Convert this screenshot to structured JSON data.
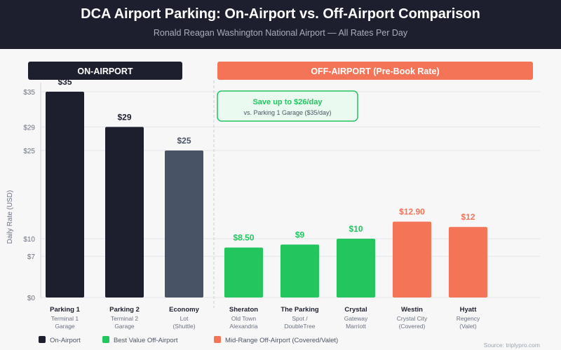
{
  "header": {
    "title": "DCA Airport Parking: On-Airport vs. Off-Airport Comparison",
    "subtitle": "Ronald Reagan Washington National Airport — All Rates Per Day"
  },
  "chart_data": {
    "type": "bar",
    "title": "DCA Airport Parking: On-Airport vs. Off-Airport Comparison",
    "subtitle": "Ronald Reagan Washington National Airport — All Rates Per Day",
    "ylabel": "Daily Rate (USD)",
    "xlabel": "",
    "ylim": [
      0,
      35
    ],
    "yticks": [
      0,
      7,
      10,
      25,
      29,
      35
    ],
    "ytick_labels": [
      "$0",
      "$7",
      "$10",
      "$25",
      "$29",
      "$35"
    ],
    "groups": [
      {
        "label": "ON-AIRPORT",
        "color": "#1d1f2e"
      },
      {
        "label": "OFF-AIRPORT (Pre-Book Rate)",
        "color": "#f47458"
      }
    ],
    "bars": [
      {
        "name": "Parking 1",
        "sub1": "Terminal 1",
        "sub2": "Garage",
        "value": 35,
        "label": "$35",
        "color": "#1d1f2e",
        "labelColor": "#1d1f2e",
        "category": "On-Airport"
      },
      {
        "name": "Parking 2",
        "sub1": "Terminal 2",
        "sub2": "Garage",
        "value": 29,
        "label": "$29",
        "color": "#1d1f2e",
        "labelColor": "#1d1f2e",
        "category": "On-Airport"
      },
      {
        "name": "Economy",
        "sub1": "Lot",
        "sub2": "(Shuttle)",
        "value": 25,
        "label": "$25",
        "color": "#485466",
        "labelColor": "#485466",
        "category": "On-Airport"
      },
      {
        "name": "Sheraton",
        "sub1": "Old Town",
        "sub2": "Alexandria",
        "value": 8.5,
        "label": "$8.50",
        "color": "#22c55e",
        "labelColor": "#22c55e",
        "category": "Best Value Off-Airport"
      },
      {
        "name": "The Parking",
        "sub1": "Spot /",
        "sub2": "DoubleTree",
        "value": 9,
        "label": "$9",
        "color": "#22c55e",
        "labelColor": "#22c55e",
        "category": "Best Value Off-Airport"
      },
      {
        "name": "Crystal",
        "sub1": "Gateway",
        "sub2": "Marriott",
        "value": 10,
        "label": "$10",
        "color": "#22c55e",
        "labelColor": "#22c55e",
        "category": "Best Value Off-Airport"
      },
      {
        "name": "Westin",
        "sub1": "Crystal City",
        "sub2": "(Covered)",
        "value": 12.9,
        "label": "$12.90",
        "color": "#f47458",
        "labelColor": "#f47458",
        "category": "Mid-Range Off-Airport (Covered/Valet)"
      },
      {
        "name": "Hyatt",
        "sub1": "Regency",
        "sub2": "(Valet)",
        "value": 12,
        "label": "$12",
        "color": "#f47458",
        "labelColor": "#f47458",
        "category": "Mid-Range Off-Airport (Covered/Valet)"
      }
    ],
    "annotation": {
      "title": "Save up to $26/day",
      "text": "vs. Parking 1 Garage ($35/day)",
      "color": "#22c55e"
    },
    "legend": {
      "placement": "bottom-left",
      "items": [
        {
          "label": "On-Airport",
          "color": "#1d1f2e"
        },
        {
          "label": "Best Value Off-Airport",
          "color": "#22c55e"
        },
        {
          "label": "Mid-Range Off-Airport (Covered/Valet)",
          "color": "#f47458"
        }
      ]
    },
    "source": "Source: triplypro.com"
  }
}
